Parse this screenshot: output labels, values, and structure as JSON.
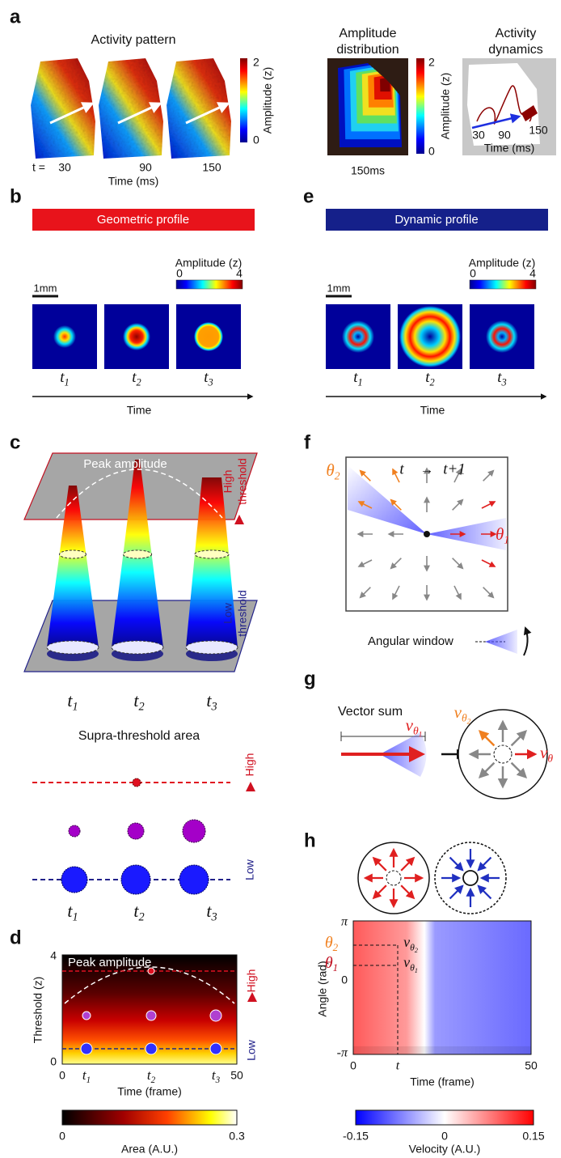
{
  "a": {
    "label": "a",
    "pattern_title": "Activity pattern",
    "pattern_cbar_ticks": [
      "2",
      "0"
    ],
    "pattern_cbar_label": "Amplitude (z)",
    "time_prefix": "t =",
    "times": [
      "30",
      "90",
      "150"
    ],
    "time_label": "Time (ms)",
    "dist_title": [
      "Amplitude",
      "distribution"
    ],
    "dist_cbar_ticks": [
      "2",
      "0"
    ],
    "dist_cbar_label": "Amplitude (z)",
    "dist_time": "150ms",
    "dyn_title": [
      "Activity",
      "dynamics"
    ],
    "dyn_times": [
      "30",
      "90",
      "150"
    ],
    "dyn_time_label": "Time (ms)"
  },
  "b": {
    "label": "b",
    "banner": "Geometric profile",
    "cbar_label": "Amplitude (z)",
    "cbar_ticks": [
      "0",
      "4"
    ],
    "scale": "1mm",
    "frames": [
      {
        "base": "t",
        "sub": "1"
      },
      {
        "base": "t",
        "sub": "2"
      },
      {
        "base": "t",
        "sub": "3"
      }
    ],
    "axis": "Time"
  },
  "e": {
    "label": "e",
    "banner": "Dynamic profile",
    "cbar_label": "Amplitude (z)",
    "cbar_ticks": [
      "0",
      "4"
    ],
    "scale": "1mm",
    "frames": [
      {
        "base": "t",
        "sub": "1"
      },
      {
        "base": "t",
        "sub": "2"
      },
      {
        "base": "t",
        "sub": "3"
      }
    ],
    "axis": "Time"
  },
  "c": {
    "label": "c",
    "peak": "Peak amplitude",
    "high": [
      "High",
      "threshold"
    ],
    "low": [
      "Low",
      "threshold"
    ],
    "frames": [
      {
        "base": "t",
        "sub": "1"
      },
      {
        "base": "t",
        "sub": "2"
      },
      {
        "base": "t",
        "sub": "3"
      }
    ],
    "area_title": "Supra-threshold area",
    "area_high": "High",
    "area_low": "Low",
    "area_frames": [
      {
        "base": "t",
        "sub": "1"
      },
      {
        "base": "t",
        "sub": "2"
      },
      {
        "base": "t",
        "sub": "3"
      }
    ]
  },
  "d": {
    "label": "d",
    "peak": "Peak amplitude",
    "y_label": "Threshold (z)",
    "y_ticks": [
      "4",
      "0"
    ],
    "x_ticks": [
      "0",
      "50"
    ],
    "x_frames": [
      {
        "base": "t",
        "sub": "1"
      },
      {
        "base": "t",
        "sub": "2"
      },
      {
        "base": "t",
        "sub": "3"
      }
    ],
    "x_label": "Time (frame)",
    "high": "High",
    "low": "Low",
    "cbar_ticks": [
      "0",
      "0.3"
    ],
    "cbar_label": "Area (A.U.)"
  },
  "f": {
    "label": "f",
    "t_from": "t",
    "arrow": "→",
    "t_to": "t+1",
    "theta2": {
      "base": "θ",
      "sub": "2"
    },
    "theta1": {
      "base": "θ",
      "sub": "1"
    },
    "window": "Angular window"
  },
  "g": {
    "label": "g",
    "title": "Vector sum",
    "v1": {
      "base": "v",
      "sub": "θ",
      "subsub": "1"
    },
    "v2": {
      "base": "v",
      "sub": "θ",
      "subsub": "2"
    },
    "v_right": {
      "base": "v",
      "sub": "θ"
    }
  },
  "h": {
    "label": "h",
    "y_label": "Angle (rad)",
    "y_ticks": [
      "π",
      "0",
      "-π"
    ],
    "x_ticks": [
      "0",
      "t",
      "50"
    ],
    "x_label": "Time (frame)",
    "theta2": {
      "base": "θ",
      "sub": "2"
    },
    "theta1": {
      "base": "θ",
      "sub": "1"
    },
    "v2": {
      "base": "v",
      "sub": "θ",
      "subsub": "2"
    },
    "v1": {
      "base": "v",
      "sub": "θ",
      "subsub": "1"
    },
    "cbar_ticks": [
      "-0.15",
      "0",
      "0.15"
    ],
    "cbar_label": "Velocity (A.U.)"
  }
}
